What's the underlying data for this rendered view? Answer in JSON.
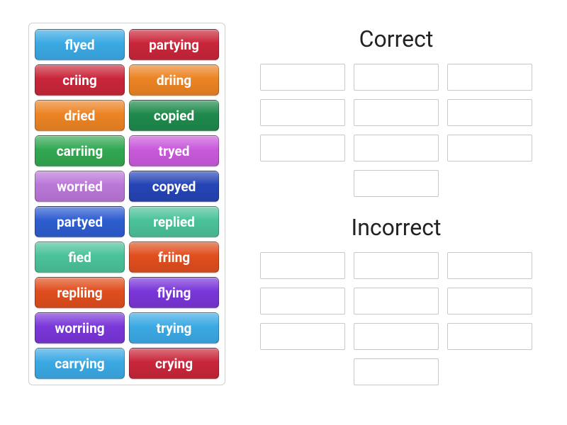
{
  "colors": {
    "lightblue": "#3ba9e4",
    "crimson": "#c9263a",
    "orange": "#ec8424",
    "darkgreen": "#1f8a4c",
    "green": "#32a852",
    "violet": "#c95adb",
    "lilac": "#ba77d8",
    "darkblue": "#2544b6",
    "royalblue": "#2d5dd0",
    "seagreen": "#4bc29a",
    "redorange": "#e04e1e",
    "purple": "#7a36d8"
  },
  "tiles": [
    {
      "label": "flyed",
      "colorKey": "lightblue"
    },
    {
      "label": "partying",
      "colorKey": "crimson"
    },
    {
      "label": "criing",
      "colorKey": "crimson"
    },
    {
      "label": "driing",
      "colorKey": "orange"
    },
    {
      "label": "dried",
      "colorKey": "orange"
    },
    {
      "label": "copied",
      "colorKey": "darkgreen"
    },
    {
      "label": "carriing",
      "colorKey": "green"
    },
    {
      "label": "tryed",
      "colorKey": "violet"
    },
    {
      "label": "worried",
      "colorKey": "lilac"
    },
    {
      "label": "copyed",
      "colorKey": "darkblue"
    },
    {
      "label": "partyed",
      "colorKey": "royalblue"
    },
    {
      "label": "replied",
      "colorKey": "seagreen"
    },
    {
      "label": "fied",
      "colorKey": "seagreen"
    },
    {
      "label": "friing",
      "colorKey": "redorange"
    },
    {
      "label": "repliing",
      "colorKey": "redorange"
    },
    {
      "label": "flying",
      "colorKey": "purple"
    },
    {
      "label": "worriing",
      "colorKey": "purple"
    },
    {
      "label": "trying",
      "colorKey": "lightblue"
    },
    {
      "label": "carrying",
      "colorKey": "lightblue"
    },
    {
      "label": "crying",
      "colorKey": "crimson"
    }
  ],
  "groups": [
    {
      "title": "Correct",
      "slot_count": 10
    },
    {
      "title": "Incorrect",
      "slot_count": 10
    }
  ],
  "tile_style": {
    "font_size": 19,
    "font_weight": 700,
    "text_color": "#ffffff",
    "border_radius": 6,
    "height": 44
  },
  "slot_style": {
    "width": 120,
    "height": 38,
    "border_color": "#c8c8c8",
    "background": "#ffffff"
  },
  "title_style": {
    "font_size": 32,
    "color": "#222222"
  }
}
